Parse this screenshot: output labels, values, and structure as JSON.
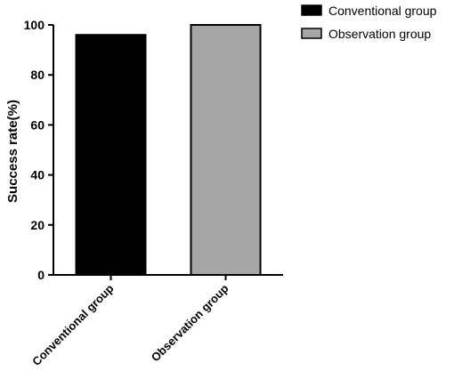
{
  "chart_data": {
    "type": "bar",
    "categories": [
      "Conventional group",
      "Observation group"
    ],
    "values": [
      96,
      100
    ],
    "colors": [
      "#000000",
      "#a6a6a6"
    ],
    "title": "",
    "xlabel": "",
    "ylabel": "Success rate(%)",
    "ylim": [
      0,
      100
    ],
    "yticks": [
      "0",
      "20",
      "40",
      "60",
      "80",
      "100"
    ],
    "grid": false,
    "legend": {
      "position": "top-right",
      "entries": [
        "Conventional group",
        "Observation group"
      ]
    }
  }
}
